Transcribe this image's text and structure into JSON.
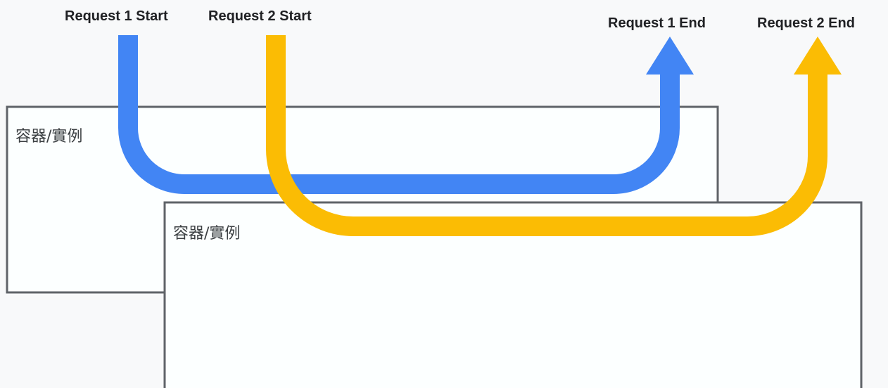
{
  "labels": {
    "request1_start": "Request 1 Start",
    "request2_start": "Request 2 Start",
    "request1_end": "Request 1 End",
    "request2_end": "Request 2 End"
  },
  "containers": [
    {
      "label": "容器/實例"
    },
    {
      "label": "容器/實例"
    }
  ],
  "colors": {
    "request1": "#4285f4",
    "request2": "#fbbc04",
    "box_border": "#5f6368",
    "box_fill": "#fcffff",
    "background": "#f8f9fa",
    "text": "#202124"
  }
}
